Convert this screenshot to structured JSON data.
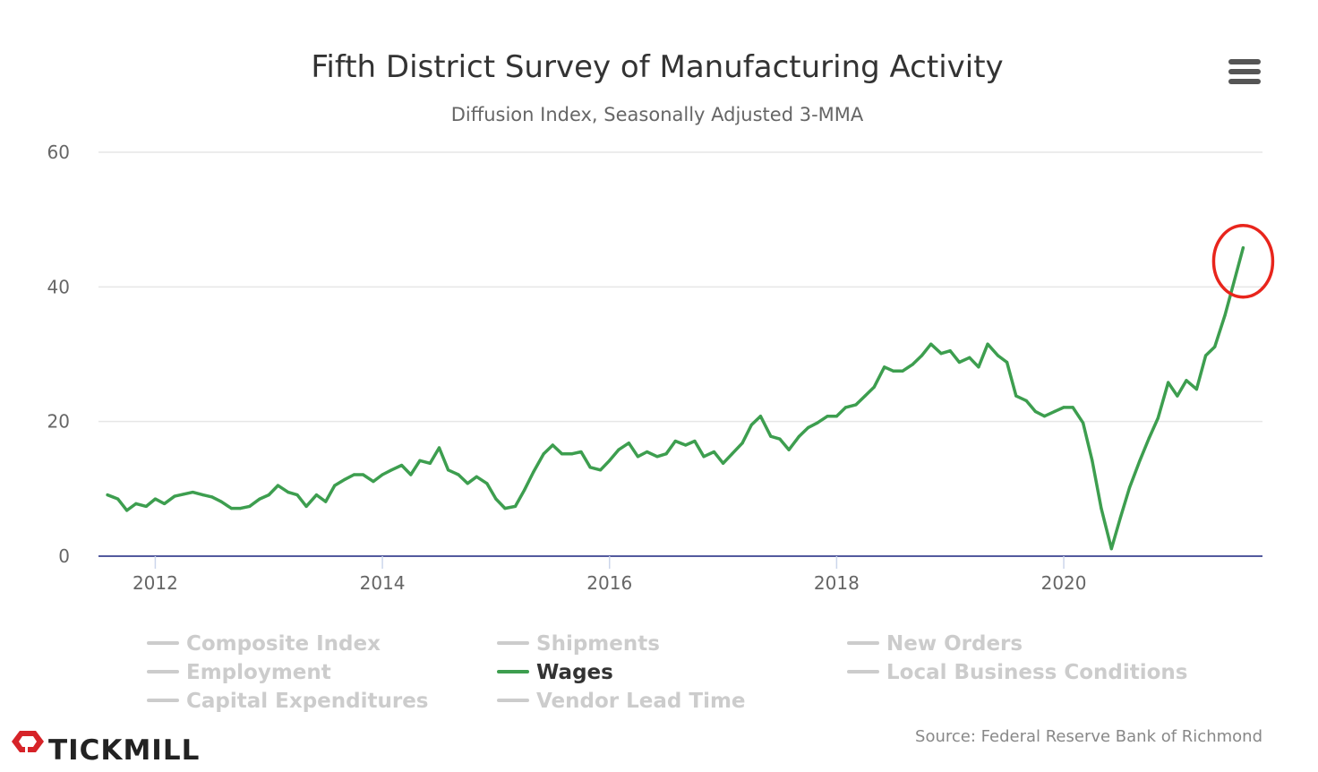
{
  "chart_data": {
    "type": "line",
    "title": "Fifth District Survey of Manufacturing Activity",
    "subtitle": "Diffusion Index, Seasonally Adjusted 3-MMA",
    "xlabel": "",
    "ylabel": "",
    "ylim": [
      0,
      60
    ],
    "yticks": [
      "0",
      "20",
      "40",
      "60"
    ],
    "xticks": [
      "2012",
      "2014",
      "2016",
      "2018",
      "2020"
    ],
    "xlim": [
      2011.5,
      2021.75
    ],
    "grid": true,
    "legend_position": "bottom",
    "source": "Source: Federal Reserve Bank of Richmond",
    "highlight": {
      "x": 2021.58,
      "y": 45.8,
      "shape": "circle",
      "color": "#e8251c"
    },
    "legend": [
      {
        "name": "Composite Index",
        "active": false,
        "color": "#cccccc"
      },
      {
        "name": "Shipments",
        "active": false,
        "color": "#cccccc"
      },
      {
        "name": "New Orders",
        "active": false,
        "color": "#cccccc"
      },
      {
        "name": "Employment",
        "active": false,
        "color": "#cccccc"
      },
      {
        "name": "Wages",
        "active": true,
        "color": "#3d9e4f"
      },
      {
        "name": "Local Business Conditions",
        "active": false,
        "color": "#cccccc"
      },
      {
        "name": "Capital Expenditures",
        "active": false,
        "color": "#cccccc"
      },
      {
        "name": "Vendor Lead Time",
        "active": false,
        "color": "#cccccc"
      }
    ],
    "series": [
      {
        "name": "Wages",
        "color": "#3d9e4f",
        "x": [
          2011.58,
          2011.67,
          2011.75,
          2011.83,
          2011.92,
          2012.0,
          2012.08,
          2012.17,
          2012.25,
          2012.33,
          2012.42,
          2012.5,
          2012.58,
          2012.67,
          2012.75,
          2012.83,
          2012.92,
          2013.0,
          2013.08,
          2013.17,
          2013.25,
          2013.33,
          2013.42,
          2013.5,
          2013.58,
          2013.67,
          2013.75,
          2013.83,
          2013.92,
          2014.0,
          2014.08,
          2014.17,
          2014.25,
          2014.33,
          2014.42,
          2014.5,
          2014.58,
          2014.67,
          2014.75,
          2014.83,
          2014.92,
          2015.0,
          2015.08,
          2015.17,
          2015.25,
          2015.33,
          2015.42,
          2015.5,
          2015.58,
          2015.67,
          2015.75,
          2015.83,
          2015.92,
          2016.0,
          2016.08,
          2016.17,
          2016.25,
          2016.33,
          2016.42,
          2016.5,
          2016.58,
          2016.67,
          2016.75,
          2016.83,
          2016.92,
          2017.0,
          2017.08,
          2017.17,
          2017.25,
          2017.33,
          2017.42,
          2017.5,
          2017.58,
          2017.67,
          2017.75,
          2017.83,
          2017.92,
          2018.0,
          2018.08,
          2018.17,
          2018.25,
          2018.33,
          2018.42,
          2018.5,
          2018.58,
          2018.67,
          2018.75,
          2018.83,
          2018.92,
          2019.0,
          2019.08,
          2019.17,
          2019.25,
          2019.33,
          2019.42,
          2019.5,
          2019.58,
          2019.67,
          2019.75,
          2019.83,
          2019.92,
          2020.0,
          2020.08,
          2020.17,
          2020.25,
          2020.33,
          2020.42,
          2020.5,
          2020.58,
          2020.67,
          2020.75,
          2020.83,
          2020.92,
          2021.0,
          2021.08,
          2021.17,
          2021.25,
          2021.33,
          2021.42,
          2021.5,
          2021.58
        ],
        "y": [
          9.1,
          8.5,
          6.8,
          7.8,
          7.4,
          8.5,
          7.8,
          8.9,
          9.2,
          9.5,
          9.1,
          8.8,
          8.1,
          7.1,
          7.1,
          7.4,
          8.5,
          9.1,
          10.5,
          9.5,
          9.1,
          7.4,
          9.1,
          8.1,
          10.5,
          11.4,
          12.1,
          12.1,
          11.1,
          12.1,
          12.8,
          13.5,
          12.1,
          14.2,
          13.8,
          16.1,
          12.8,
          12.1,
          10.8,
          11.8,
          10.8,
          8.5,
          7.1,
          7.4,
          9.8,
          12.5,
          15.2,
          16.5,
          15.2,
          15.2,
          15.5,
          13.2,
          12.8,
          14.2,
          15.8,
          16.8,
          14.8,
          15.5,
          14.8,
          15.2,
          17.1,
          16.5,
          17.1,
          14.8,
          15.5,
          13.8,
          15.2,
          16.8,
          19.5,
          20.8,
          17.8,
          17.4,
          15.8,
          17.8,
          19.1,
          19.8,
          20.8,
          20.8,
          22.1,
          22.5,
          23.8,
          25.1,
          28.1,
          27.5,
          27.5,
          28.5,
          29.8,
          31.5,
          30.1,
          30.5,
          28.8,
          29.5,
          28.1,
          31.5,
          29.8,
          28.8,
          23.8,
          23.1,
          21.5,
          20.8,
          21.5,
          22.1,
          22.1,
          19.8,
          14.2,
          7.1,
          1.1,
          5.8,
          10.2,
          14.2,
          17.5,
          20.5,
          25.8,
          23.8,
          26.1,
          24.8,
          29.8,
          31.1,
          35.8,
          40.8,
          45.8
        ]
      }
    ]
  },
  "brand": {
    "name": "TICKMILL",
    "logo_color": "#d62328"
  },
  "menu": {
    "icon": "hamburger-menu-icon"
  },
  "colors": {
    "grid": "#e6e6e6",
    "axis": "#ccd6eb",
    "text": "#666666"
  }
}
